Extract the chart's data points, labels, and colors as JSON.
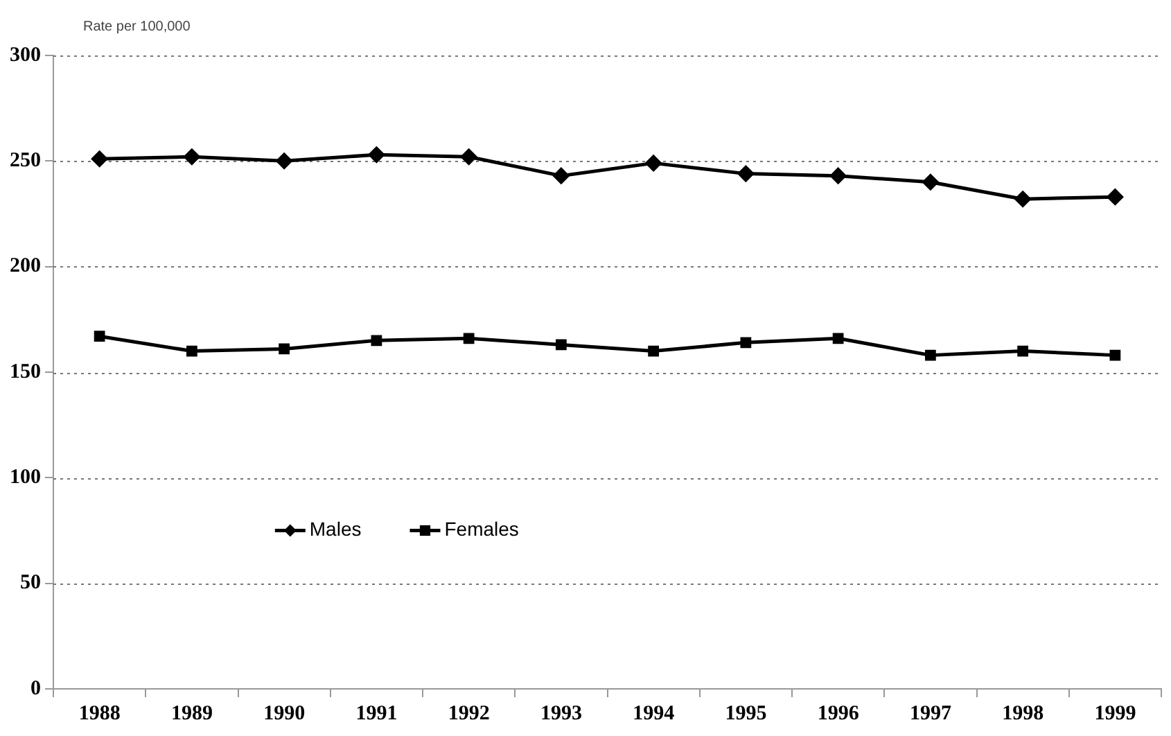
{
  "chart_data": {
    "type": "line",
    "ylabel": "Rate per 100,000",
    "categories": [
      "1988",
      "1989",
      "1990",
      "1991",
      "1992",
      "1993",
      "1994",
      "1995",
      "1996",
      "1997",
      "1998",
      "1999"
    ],
    "series": [
      {
        "name": "Males",
        "color": "#000000",
        "marker": "diamond",
        "values": [
          251,
          252,
          250,
          253,
          252,
          243,
          249,
          244,
          243,
          240,
          232,
          233
        ]
      },
      {
        "name": "Females",
        "color": "#000000",
        "marker": "square",
        "values": [
          167,
          160,
          161,
          165,
          166,
          163,
          160,
          164,
          166,
          158,
          160,
          158
        ]
      }
    ],
    "ylim": [
      0,
      300
    ],
    "yticks": [
      0,
      50,
      100,
      150,
      200,
      250,
      300
    ],
    "grid": "y",
    "legend": "left",
    "line_style": "solid"
  }
}
